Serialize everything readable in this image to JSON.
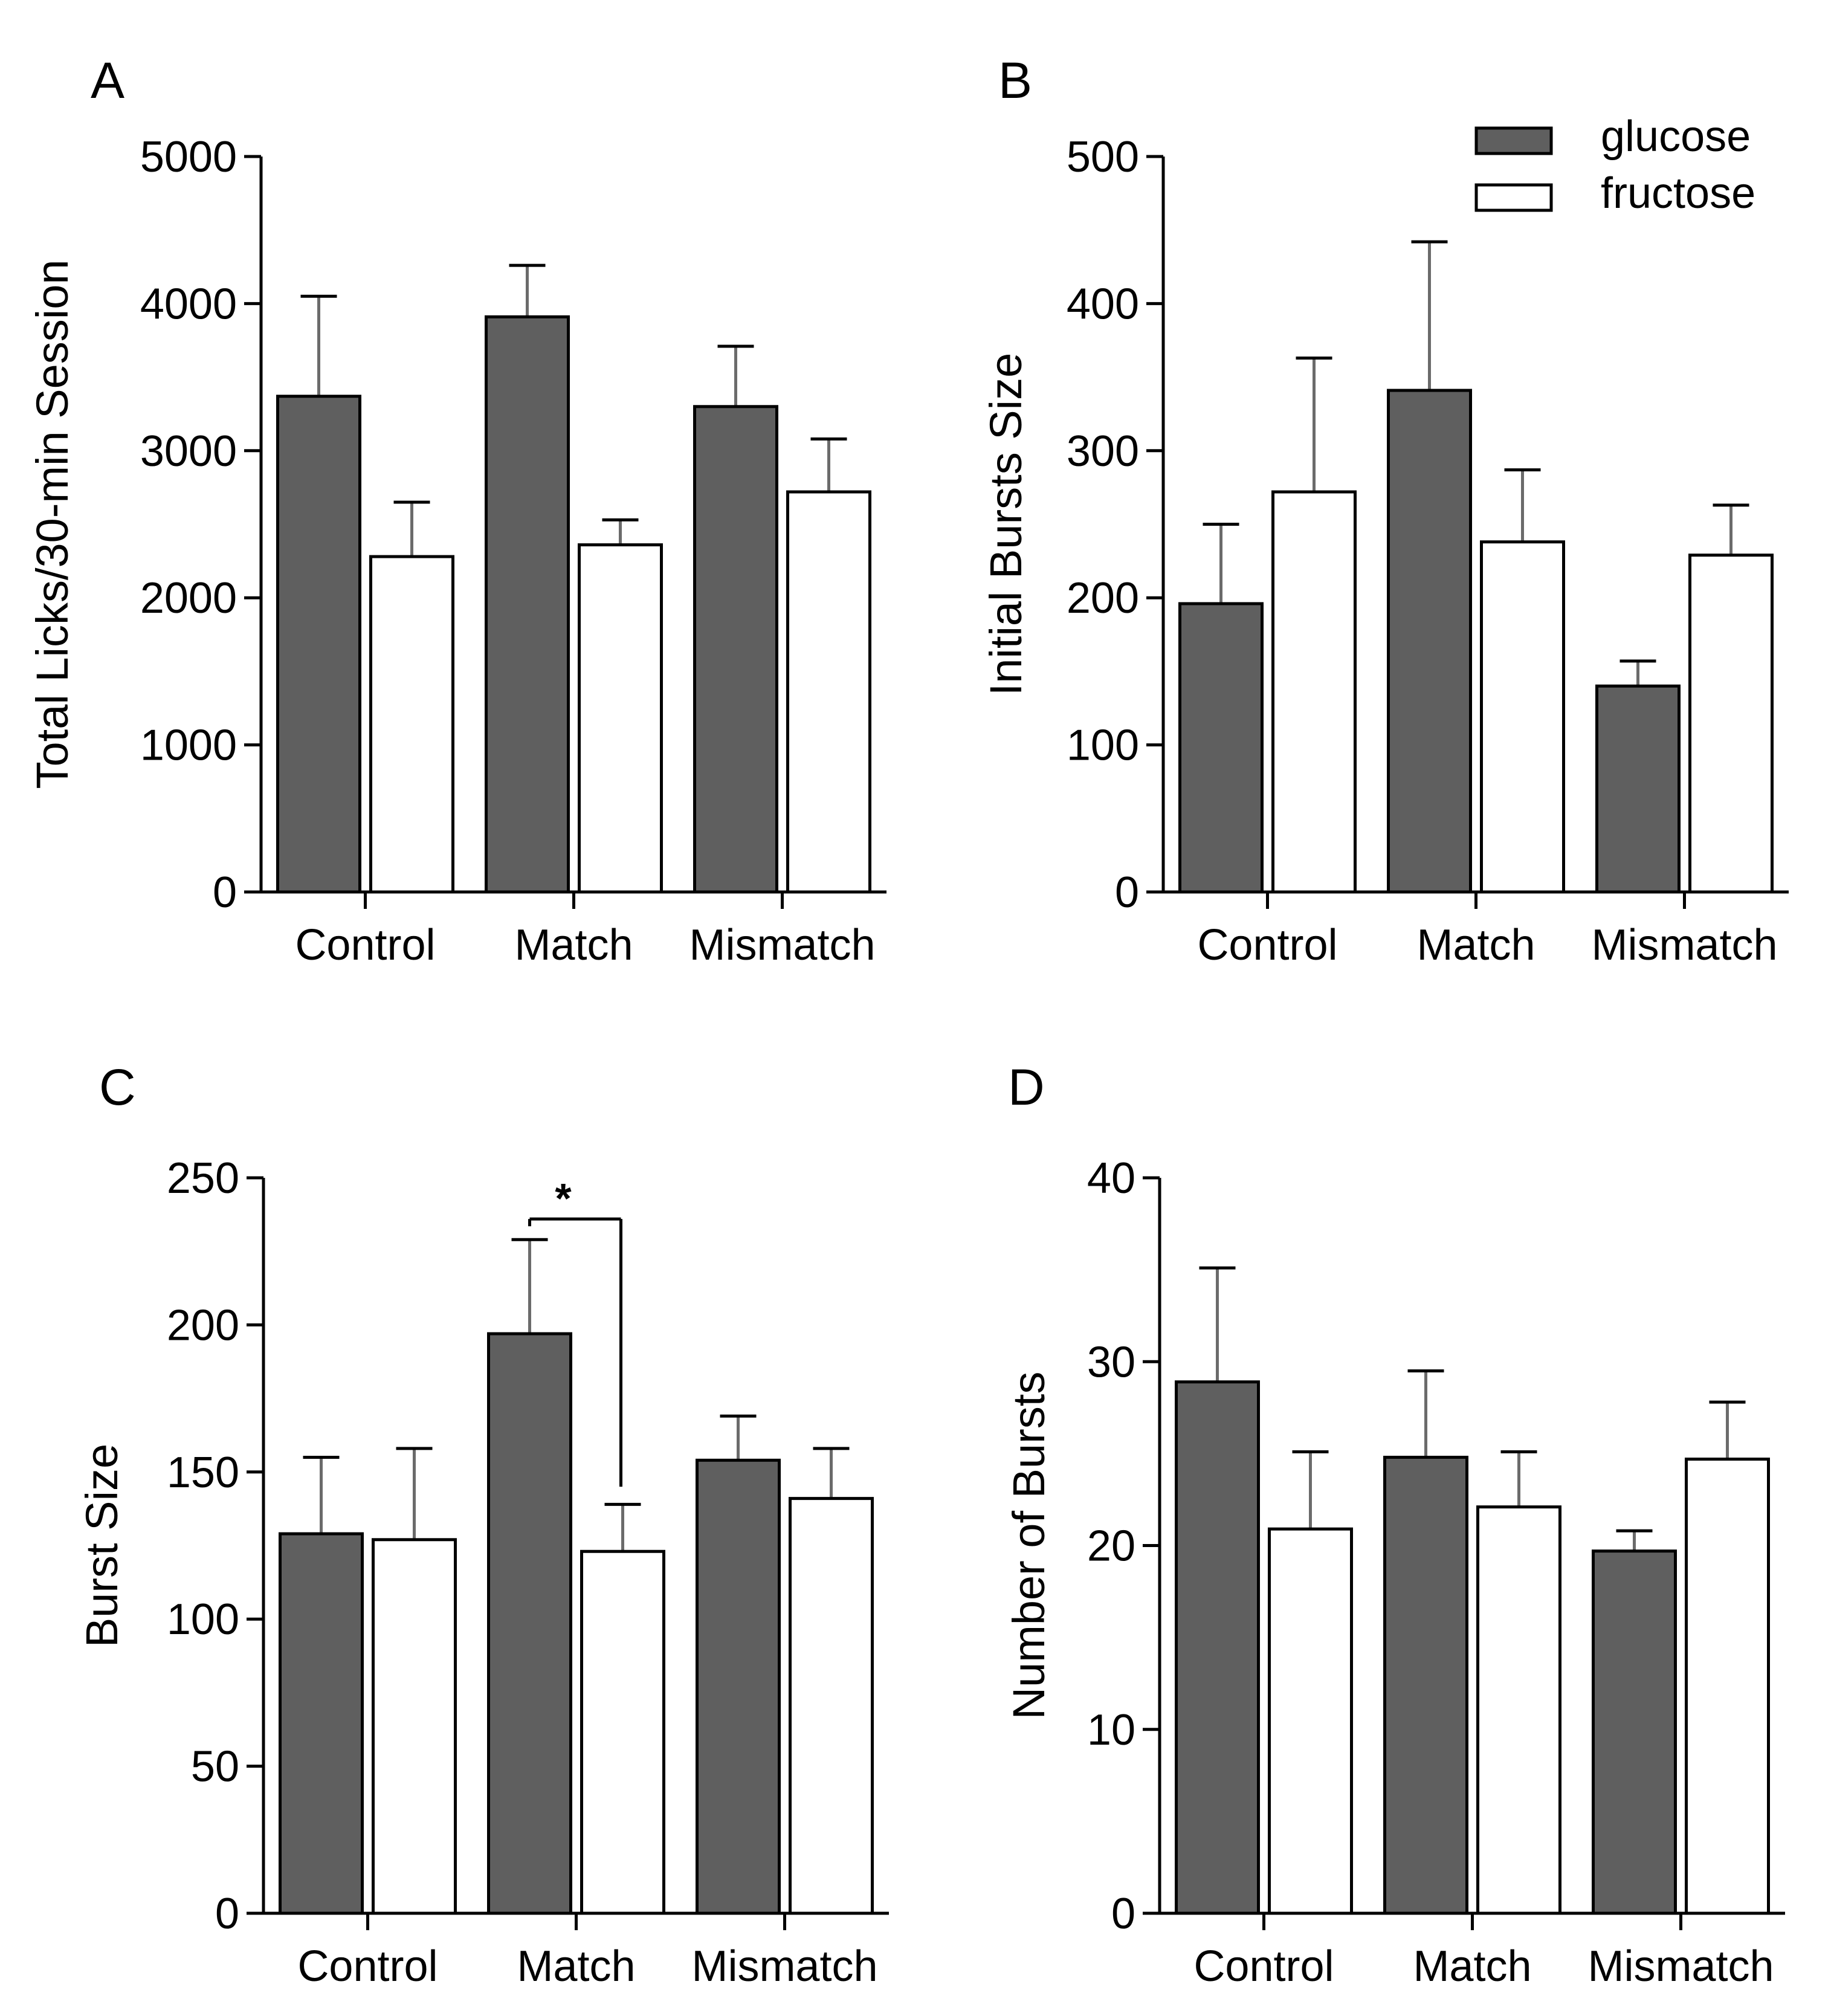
{
  "colors": {
    "glucose": "#5f5f5f",
    "fructose": "#ffffff",
    "stroke": "#000000",
    "error_bar": "#6b6b6b"
  },
  "legend": {
    "items": [
      {
        "label": "glucose",
        "color": "#5f5f5f"
      },
      {
        "label": "fructose",
        "color": "#ffffff"
      }
    ]
  },
  "chart_data": [
    {
      "panel": "A",
      "type": "bar",
      "title": "",
      "ylabel": "Total Licks/30-min Session",
      "xlabel": "",
      "categories": [
        "Control",
        "Match",
        "Mismatch"
      ],
      "ylim": [
        0,
        5000
      ],
      "yticks": [
        0,
        1000,
        2000,
        3000,
        4000,
        5000
      ],
      "ytick_labels": [
        "0",
        "1000",
        "2000",
        "3000",
        "4000",
        "5000"
      ],
      "series": [
        {
          "name": "glucose",
          "values": [
            3370,
            3910,
            3300
          ],
          "errors": [
            680,
            350,
            410
          ]
        },
        {
          "name": "fructose",
          "values": [
            2280,
            2360,
            2720
          ],
          "errors": [
            370,
            170,
            360
          ]
        }
      ]
    },
    {
      "panel": "B",
      "type": "bar",
      "title": "",
      "ylabel": "Initial Bursts Size",
      "xlabel": "",
      "categories": [
        "Control",
        "Match",
        "Mismatch"
      ],
      "ylim": [
        0,
        500
      ],
      "yticks": [
        0,
        100,
        200,
        300,
        400,
        500
      ],
      "ytick_labels": [
        "0",
        "100",
        "200",
        "300",
        "400",
        "500"
      ],
      "legend_position": "top-right",
      "series": [
        {
          "name": "glucose",
          "values": [
            196,
            341,
            140
          ],
          "errors": [
            54,
            101,
            17
          ]
        },
        {
          "name": "fructose",
          "values": [
            272,
            238,
            229
          ],
          "errors": [
            91,
            49,
            34
          ]
        }
      ]
    },
    {
      "panel": "C",
      "type": "bar",
      "title": "",
      "ylabel": "Burst Size",
      "xlabel": "",
      "categories": [
        "Control",
        "Match",
        "Mismatch"
      ],
      "ylim": [
        0,
        250
      ],
      "yticks": [
        0,
        50,
        100,
        150,
        200,
        250
      ],
      "ytick_labels": [
        "0",
        "50",
        "100",
        "150",
        "200",
        "250"
      ],
      "series": [
        {
          "name": "glucose",
          "values": [
            129,
            197,
            154
          ],
          "errors": [
            26,
            32,
            15
          ]
        },
        {
          "name": "fructose",
          "values": [
            127,
            123,
            141
          ],
          "errors": [
            31,
            16,
            17
          ]
        }
      ],
      "annotations": [
        {
          "text": "*",
          "category": "Match",
          "between": [
            "glucose",
            "fructose"
          ],
          "level": 236,
          "right_end": 145
        }
      ]
    },
    {
      "panel": "D",
      "type": "bar",
      "title": "",
      "ylabel": "Number of Bursts",
      "xlabel": "",
      "categories": [
        "Control",
        "Match",
        "Mismatch"
      ],
      "ylim": [
        0,
        40
      ],
      "yticks": [
        0,
        10,
        20,
        30,
        40
      ],
      "ytick_labels": [
        "0",
        "10",
        "20",
        "30",
        "40"
      ],
      "series": [
        {
          "name": "glucose",
          "values": [
            28.9,
            24.8,
            19.7
          ],
          "errors": [
            6.2,
            4.7,
            1.1
          ]
        },
        {
          "name": "fructose",
          "values": [
            20.9,
            22.1,
            24.7
          ],
          "errors": [
            4.2,
            3.0,
            3.1
          ]
        }
      ]
    }
  ]
}
